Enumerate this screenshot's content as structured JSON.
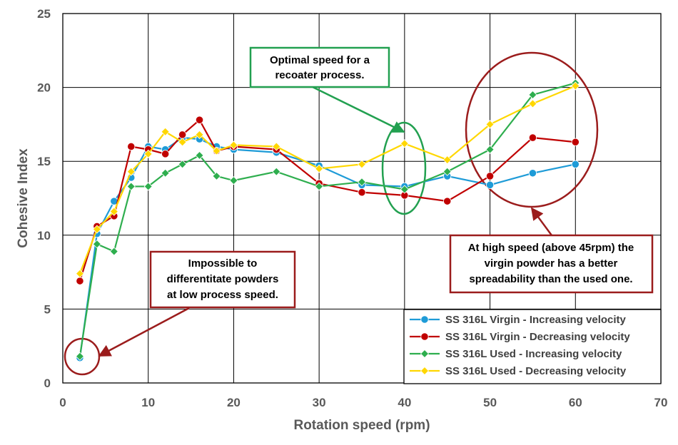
{
  "chart_data": {
    "type": "line",
    "title": "",
    "xlabel": "Rotation speed (rpm)",
    "ylabel": "Cohesive Index",
    "xlim": [
      0,
      70
    ],
    "ylim": [
      0,
      25
    ],
    "xticks": [
      0,
      10,
      20,
      30,
      40,
      50,
      60,
      70
    ],
    "yticks": [
      0,
      5,
      10,
      15,
      20,
      25
    ],
    "grid": true,
    "legend_position": "bottom-right",
    "series": [
      {
        "name": "SS 316L Virgin - Increasing velocity",
        "color": "#1E9BD7",
        "marker": "circle",
        "x": [
          2,
          4,
          6,
          8,
          10,
          12,
          14,
          16,
          18,
          20,
          25,
          30,
          35,
          40,
          45,
          50,
          55,
          60
        ],
        "y": [
          1.7,
          10.1,
          12.3,
          13.9,
          16.0,
          15.8,
          16.6,
          16.5,
          16.0,
          15.8,
          15.6,
          14.7,
          13.4,
          13.3,
          14.0,
          13.4,
          14.2,
          14.8
        ]
      },
      {
        "name": "SS 316L Virgin - Decreasing velocity",
        "color": "#C00000",
        "marker": "circle",
        "x": [
          2,
          4,
          6,
          8,
          10,
          12,
          14,
          16,
          18,
          20,
          25,
          30,
          35,
          40,
          45,
          50,
          55,
          60
        ],
        "y": [
          6.9,
          10.6,
          11.3,
          16.0,
          15.8,
          15.5,
          16.8,
          17.8,
          15.7,
          16.0,
          15.8,
          13.5,
          12.9,
          12.7,
          12.3,
          14.0,
          16.6,
          16.3
        ]
      },
      {
        "name": "SS 316L Used - Increasing velocity",
        "color": "#2EAE4E",
        "marker": "diamond",
        "x": [
          2,
          4,
          6,
          8,
          10,
          12,
          14,
          16,
          18,
          20,
          25,
          30,
          35,
          40,
          45,
          50,
          55,
          60
        ],
        "y": [
          1.8,
          9.4,
          8.9,
          13.3,
          13.3,
          14.2,
          14.8,
          15.4,
          14.0,
          13.7,
          14.3,
          13.3,
          13.6,
          13.1,
          14.3,
          15.8,
          19.5,
          20.3
        ]
      },
      {
        "name": "SS 316L Used - Decreasing velocity",
        "color": "#FFD700",
        "marker": "diamond",
        "x": [
          2,
          4,
          6,
          8,
          10,
          12,
          14,
          16,
          18,
          20,
          25,
          30,
          35,
          40,
          45,
          50,
          55,
          60
        ],
        "y": [
          7.4,
          10.4,
          11.6,
          14.3,
          15.5,
          17.0,
          16.3,
          16.8,
          15.7,
          16.1,
          16.0,
          14.5,
          14.8,
          16.2,
          15.1,
          17.5,
          18.9,
          20.1
        ]
      }
    ],
    "annotations": [
      {
        "id": "recoater",
        "text": [
          "Optimal speed for a",
          "recoater process."
        ],
        "border_color": "#22A050"
      },
      {
        "id": "low-speed",
        "text": [
          "Impossible to",
          "differentitate powders",
          "at low process speed."
        ],
        "border_color": "#9B1C1C"
      },
      {
        "id": "high-speed",
        "text": [
          "At high speed (above 45rpm) the",
          "virgin powder has a better",
          "spreadability than the used one."
        ],
        "border_color": "#9B1C1C"
      }
    ]
  }
}
